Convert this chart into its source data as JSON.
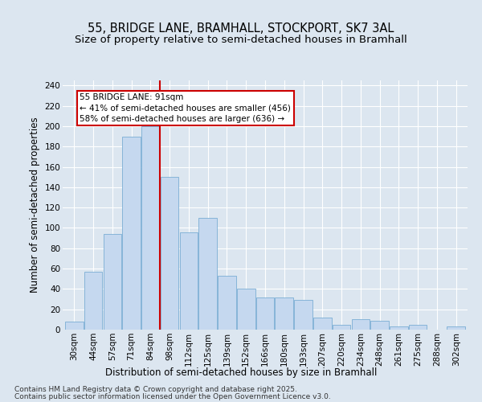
{
  "title": "55, BRIDGE LANE, BRAMHALL, STOCKPORT, SK7 3AL",
  "subtitle": "Size of property relative to semi-detached houses in Bramhall",
  "xlabel": "Distribution of semi-detached houses by size in Bramhall",
  "ylabel": "Number of semi-detached properties",
  "categories": [
    "30sqm",
    "44sqm",
    "57sqm",
    "71sqm",
    "84sqm",
    "98sqm",
    "112sqm",
    "125sqm",
    "139sqm",
    "152sqm",
    "166sqm",
    "180sqm",
    "193sqm",
    "207sqm",
    "220sqm",
    "234sqm",
    "248sqm",
    "261sqm",
    "275sqm",
    "288sqm",
    "302sqm"
  ],
  "values": [
    8,
    57,
    94,
    190,
    200,
    150,
    96,
    110,
    53,
    40,
    32,
    32,
    29,
    12,
    5,
    10,
    9,
    3,
    5,
    0,
    3
  ],
  "bar_color": "#c5d8ef",
  "bar_edge_color": "#7aadd4",
  "property_bin_index": 4,
  "annotation_line1": "55 BRIDGE LANE: 91sqm",
  "annotation_line2": "← 41% of semi-detached houses are smaller (456)",
  "annotation_line3": "58% of semi-detached houses are larger (636) →",
  "annotation_box_color": "#ffffff",
  "annotation_box_edge_color": "#cc0000",
  "vline_color": "#cc0000",
  "background_color": "#dce6f0",
  "plot_bg_color": "#dce6f0",
  "footer_line1": "Contains HM Land Registry data © Crown copyright and database right 2025.",
  "footer_line2": "Contains public sector information licensed under the Open Government Licence v3.0.",
  "ylim": [
    0,
    245
  ],
  "yticks": [
    0,
    20,
    40,
    60,
    80,
    100,
    120,
    140,
    160,
    180,
    200,
    220,
    240
  ],
  "title_fontsize": 10.5,
  "subtitle_fontsize": 9.5,
  "axis_label_fontsize": 8.5,
  "tick_fontsize": 7.5,
  "annotation_fontsize": 7.5,
  "footer_fontsize": 6.5
}
